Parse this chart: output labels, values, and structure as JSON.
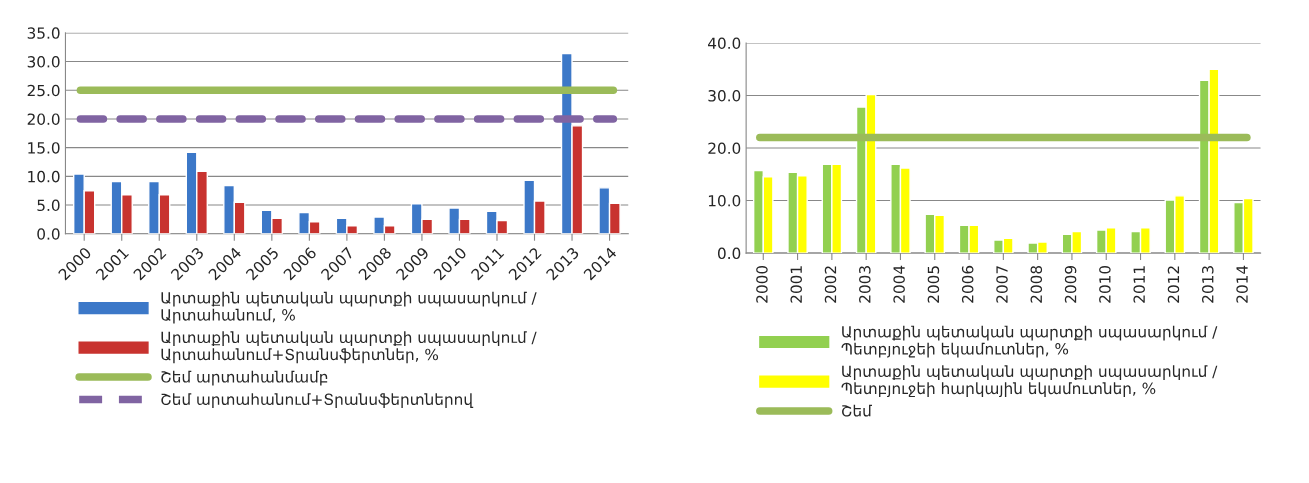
{
  "chart_data": [
    {
      "type": "bar",
      "categories": [
        "2000",
        "2001",
        "2002",
        "2003",
        "2004",
        "2005",
        "2006",
        "2007",
        "2008",
        "2009",
        "2010",
        "2011",
        "2012",
        "2013",
        "2014"
      ],
      "series": [
        {
          "name": "Արտաքին պետական պարտքի սպասարկում /\nԱրտահանում, %",
          "color": "#3c78c8",
          "values": [
            10.4,
            9.1,
            9.1,
            14.2,
            8.4,
            4.1,
            3.7,
            2.7,
            2.9,
            5.2,
            4.5,
            3.9,
            9.3,
            31.4,
            8.0
          ]
        },
        {
          "name": "Արտաքին պետական պարտքի սպասարկում /\nԱրտահանում+Տրանսֆերտներ, %",
          "color": "#c8332f",
          "values": [
            7.5,
            6.8,
            6.8,
            10.9,
            5.5,
            2.7,
            2.1,
            1.4,
            1.4,
            2.5,
            2.5,
            2.3,
            5.7,
            18.8,
            5.3
          ]
        }
      ],
      "ref_lines": [
        {
          "axis": "y",
          "value": 25,
          "label": "Շեմ արտահանմամբ",
          "color": "#9bbb59",
          "line_style": "solid"
        },
        {
          "axis": "y",
          "value": 20,
          "label": "Շեմ արտահանում+Տրանսֆերտներով",
          "color": "#8064a2",
          "line_style": "dashed"
        }
      ],
      "ylim": [
        0,
        35
      ],
      "yticks": [
        {
          "value": 0,
          "label": "0.0"
        },
        {
          "value": 5,
          "label": "5.0"
        },
        {
          "value": 10,
          "label": "10.0"
        },
        {
          "value": 15,
          "label": "15.0"
        },
        {
          "value": 20,
          "label": "20.0"
        },
        {
          "value": 25,
          "label": "25.0"
        },
        {
          "value": 30,
          "label": "30.0"
        },
        {
          "value": 35,
          "label": "35.0"
        }
      ],
      "grid": "y",
      "legend": "bottom"
    },
    {
      "type": "bar",
      "categories": [
        "2000",
        "2001",
        "2002",
        "2003",
        "2004",
        "2005",
        "2006",
        "2007",
        "2008",
        "2009",
        "2010",
        "2011",
        "2012",
        "2013",
        "2014"
      ],
      "series": [
        {
          "name": "Արտաքին պետական պարտքի սպասարկում /\nՊետբյուջեի եկամուտներ, %",
          "color": "#92d050",
          "values": [
            15.7,
            15.4,
            16.9,
            27.8,
            16.9,
            7.4,
            5.3,
            2.5,
            1.9,
            3.6,
            4.4,
            4.1,
            10.1,
            32.9,
            9.6
          ]
        },
        {
          "name": "Արտաքին պետական պարտքի սպասարկում /\nՊետբյուջեի հարկային եկամուտներ, %",
          "color": "#ffff00",
          "values": [
            14.5,
            14.7,
            16.9,
            30.2,
            16.2,
            7.2,
            5.3,
            2.8,
            2.1,
            4.1,
            4.8,
            4.8,
            10.9,
            35.0,
            10.4
          ]
        }
      ],
      "ref_lines": [
        {
          "axis": "y",
          "value": 22,
          "label": "Շեմ",
          "color": "#9bbb59",
          "line_style": "solid"
        }
      ],
      "ylim": [
        0,
        40
      ],
      "yticks": [
        {
          "value": 0,
          "label": "0.0"
        },
        {
          "value": 10,
          "label": "10.0"
        },
        {
          "value": 20,
          "label": "20.0"
        },
        {
          "value": 30,
          "label": "30.0"
        },
        {
          "value": 40,
          "label": "40.0"
        }
      ],
      "grid": "y",
      "legend": "bottom"
    }
  ]
}
